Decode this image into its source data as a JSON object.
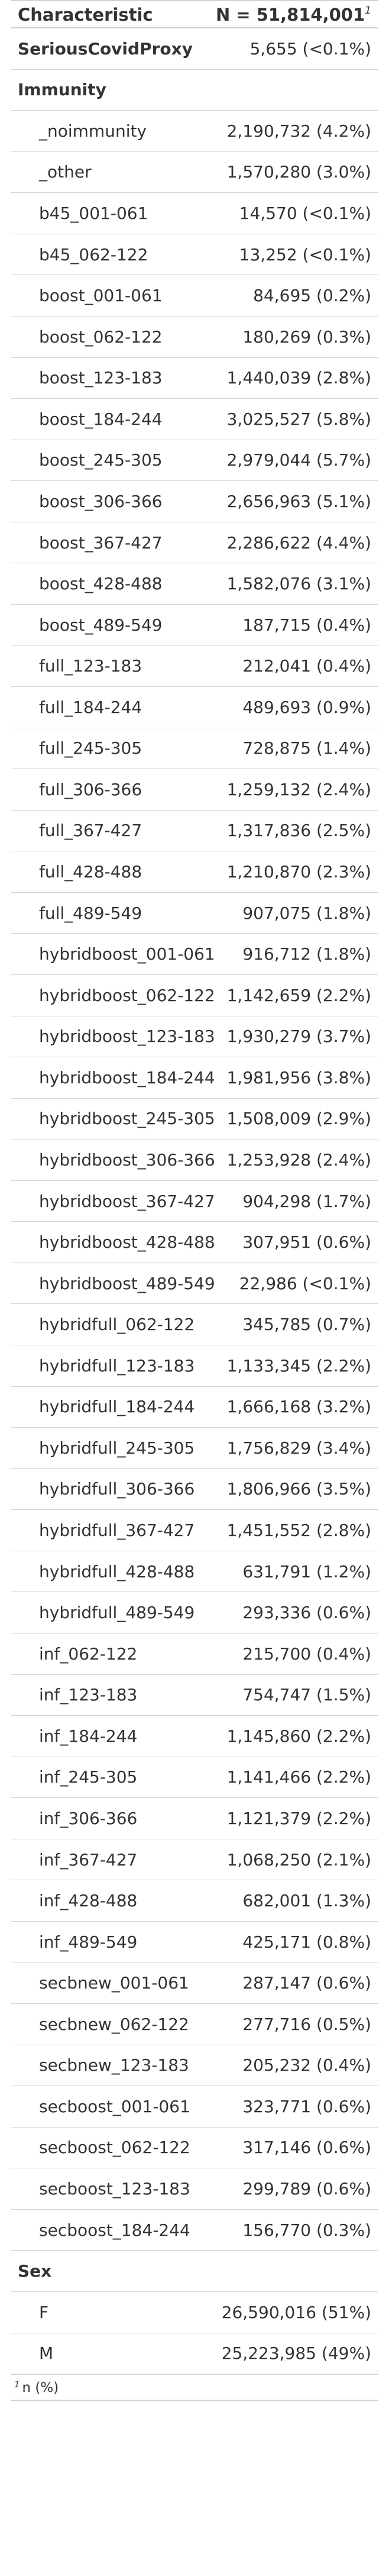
{
  "header": {
    "characteristic": "Characteristic",
    "n_label": "N = 51,814,001",
    "footnote_marker": "1"
  },
  "rows": [
    {
      "label": "SeriousCovidProxy",
      "value": "5,655 (<0.1%)",
      "kind": "var"
    },
    {
      "label": "Immunity",
      "value": "",
      "kind": "var"
    },
    {
      "label": "_noimmunity",
      "value": "2,190,732 (4.2%)",
      "kind": "level"
    },
    {
      "label": "_other",
      "value": "1,570,280 (3.0%)",
      "kind": "level"
    },
    {
      "label": "b45_001-061",
      "value": "14,570 (<0.1%)",
      "kind": "level"
    },
    {
      "label": "b45_062-122",
      "value": "13,252 (<0.1%)",
      "kind": "level"
    },
    {
      "label": "boost_001-061",
      "value": "84,695 (0.2%)",
      "kind": "level"
    },
    {
      "label": "boost_062-122",
      "value": "180,269 (0.3%)",
      "kind": "level"
    },
    {
      "label": "boost_123-183",
      "value": "1,440,039 (2.8%)",
      "kind": "level"
    },
    {
      "label": "boost_184-244",
      "value": "3,025,527 (5.8%)",
      "kind": "level"
    },
    {
      "label": "boost_245-305",
      "value": "2,979,044 (5.7%)",
      "kind": "level"
    },
    {
      "label": "boost_306-366",
      "value": "2,656,963 (5.1%)",
      "kind": "level"
    },
    {
      "label": "boost_367-427",
      "value": "2,286,622 (4.4%)",
      "kind": "level"
    },
    {
      "label": "boost_428-488",
      "value": "1,582,076 (3.1%)",
      "kind": "level"
    },
    {
      "label": "boost_489-549",
      "value": "187,715 (0.4%)",
      "kind": "level"
    },
    {
      "label": "full_123-183",
      "value": "212,041 (0.4%)",
      "kind": "level"
    },
    {
      "label": "full_184-244",
      "value": "489,693 (0.9%)",
      "kind": "level"
    },
    {
      "label": "full_245-305",
      "value": "728,875 (1.4%)",
      "kind": "level"
    },
    {
      "label": "full_306-366",
      "value": "1,259,132 (2.4%)",
      "kind": "level"
    },
    {
      "label": "full_367-427",
      "value": "1,317,836 (2.5%)",
      "kind": "level"
    },
    {
      "label": "full_428-488",
      "value": "1,210,870 (2.3%)",
      "kind": "level"
    },
    {
      "label": "full_489-549",
      "value": "907,075 (1.8%)",
      "kind": "level"
    },
    {
      "label": "hybridboost_001-061",
      "value": "916,712 (1.8%)",
      "kind": "level"
    },
    {
      "label": "hybridboost_062-122",
      "value": "1,142,659 (2.2%)",
      "kind": "level"
    },
    {
      "label": "hybridboost_123-183",
      "value": "1,930,279 (3.7%)",
      "kind": "level"
    },
    {
      "label": "hybridboost_184-244",
      "value": "1,981,956 (3.8%)",
      "kind": "level"
    },
    {
      "label": "hybridboost_245-305",
      "value": "1,508,009 (2.9%)",
      "kind": "level"
    },
    {
      "label": "hybridboost_306-366",
      "value": "1,253,928 (2.4%)",
      "kind": "level"
    },
    {
      "label": "hybridboost_367-427",
      "value": "904,298 (1.7%)",
      "kind": "level"
    },
    {
      "label": "hybridboost_428-488",
      "value": "307,951 (0.6%)",
      "kind": "level"
    },
    {
      "label": "hybridboost_489-549",
      "value": "22,986 (<0.1%)",
      "kind": "level"
    },
    {
      "label": "hybridfull_062-122",
      "value": "345,785 (0.7%)",
      "kind": "level"
    },
    {
      "label": "hybridfull_123-183",
      "value": "1,133,345 (2.2%)",
      "kind": "level"
    },
    {
      "label": "hybridfull_184-244",
      "value": "1,666,168 (3.2%)",
      "kind": "level"
    },
    {
      "label": "hybridfull_245-305",
      "value": "1,756,829 (3.4%)",
      "kind": "level"
    },
    {
      "label": "hybridfull_306-366",
      "value": "1,806,966 (3.5%)",
      "kind": "level"
    },
    {
      "label": "hybridfull_367-427",
      "value": "1,451,552 (2.8%)",
      "kind": "level"
    },
    {
      "label": "hybridfull_428-488",
      "value": "631,791 (1.2%)",
      "kind": "level"
    },
    {
      "label": "hybridfull_489-549",
      "value": "293,336 (0.6%)",
      "kind": "level"
    },
    {
      "label": "inf_062-122",
      "value": "215,700 (0.4%)",
      "kind": "level"
    },
    {
      "label": "inf_123-183",
      "value": "754,747 (1.5%)",
      "kind": "level"
    },
    {
      "label": "inf_184-244",
      "value": "1,145,860 (2.2%)",
      "kind": "level"
    },
    {
      "label": "inf_245-305",
      "value": "1,141,466 (2.2%)",
      "kind": "level"
    },
    {
      "label": "inf_306-366",
      "value": "1,121,379 (2.2%)",
      "kind": "level"
    },
    {
      "label": "inf_367-427",
      "value": "1,068,250 (2.1%)",
      "kind": "level"
    },
    {
      "label": "inf_428-488",
      "value": "682,001 (1.3%)",
      "kind": "level"
    },
    {
      "label": "inf_489-549",
      "value": "425,171 (0.8%)",
      "kind": "level"
    },
    {
      "label": "secbnew_001-061",
      "value": "287,147 (0.6%)",
      "kind": "level"
    },
    {
      "label": "secbnew_062-122",
      "value": "277,716 (0.5%)",
      "kind": "level"
    },
    {
      "label": "secbnew_123-183",
      "value": "205,232 (0.4%)",
      "kind": "level"
    },
    {
      "label": "secboost_001-061",
      "value": "323,771 (0.6%)",
      "kind": "level"
    },
    {
      "label": "secboost_062-122",
      "value": "317,146 (0.6%)",
      "kind": "level"
    },
    {
      "label": "secboost_123-183",
      "value": "299,789 (0.6%)",
      "kind": "level"
    },
    {
      "label": "secboost_184-244",
      "value": "156,770 (0.3%)",
      "kind": "level"
    },
    {
      "label": "Sex",
      "value": "",
      "kind": "var"
    },
    {
      "label": "F",
      "value": "26,590,016 (51%)",
      "kind": "level"
    },
    {
      "label": "M",
      "value": "25,223,985 (49%)",
      "kind": "level"
    }
  ],
  "footer": {
    "marker": "1",
    "note": "n (%)"
  }
}
